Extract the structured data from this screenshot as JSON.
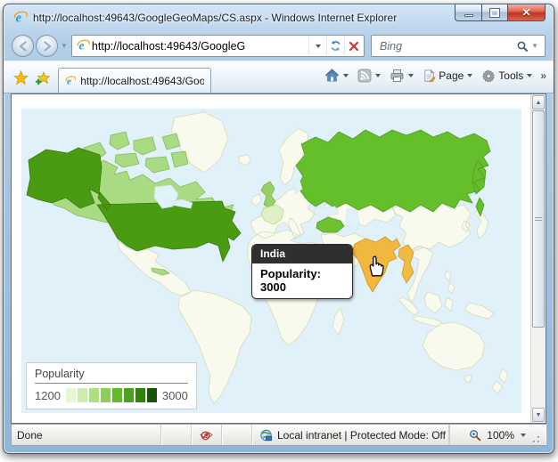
{
  "window": {
    "title": "http://localhost:49643/GoogleGeoMaps/CS.aspx - Windows Internet Explorer"
  },
  "nav": {
    "address": "http://localhost:49643/GoogleG",
    "search_placeholder": "Bing"
  },
  "tabs": {
    "active_tab": "http://localhost:49643/Googl...",
    "page_label": "Page",
    "tools_label": "Tools",
    "overflow_chevron": "»"
  },
  "map": {
    "tooltip_title": "India",
    "tooltip_body": "Popularity: 3000",
    "legend_title": "Popularity",
    "legend_min": "1200",
    "legend_max": "3000",
    "legend_colors": [
      "#e7f6d4",
      "#cdecab",
      "#aede81",
      "#8bd056",
      "#63b92b",
      "#4aa318",
      "#2f8211",
      "#175409"
    ],
    "colors": {
      "ocean": "#e1f1f9",
      "land": "#f9faee",
      "canada": "#a9dc82",
      "usa": "#4a9b12",
      "russia": "#65bf2b",
      "uk": "#97d063",
      "france": "#def1c6",
      "turkey": "#6cc233",
      "india": "#f1b73e",
      "thailand": "#f0ba45"
    }
  },
  "chart_data": {
    "type": "heatmap",
    "title": "Popularity",
    "legend_range": [
      1200,
      3000
    ],
    "highlighted_region": {
      "name": "India",
      "value": 3000
    }
  },
  "status": {
    "done": "Done",
    "zone": "Local intranet | Protected Mode: Off",
    "zoom_level": "100%"
  }
}
